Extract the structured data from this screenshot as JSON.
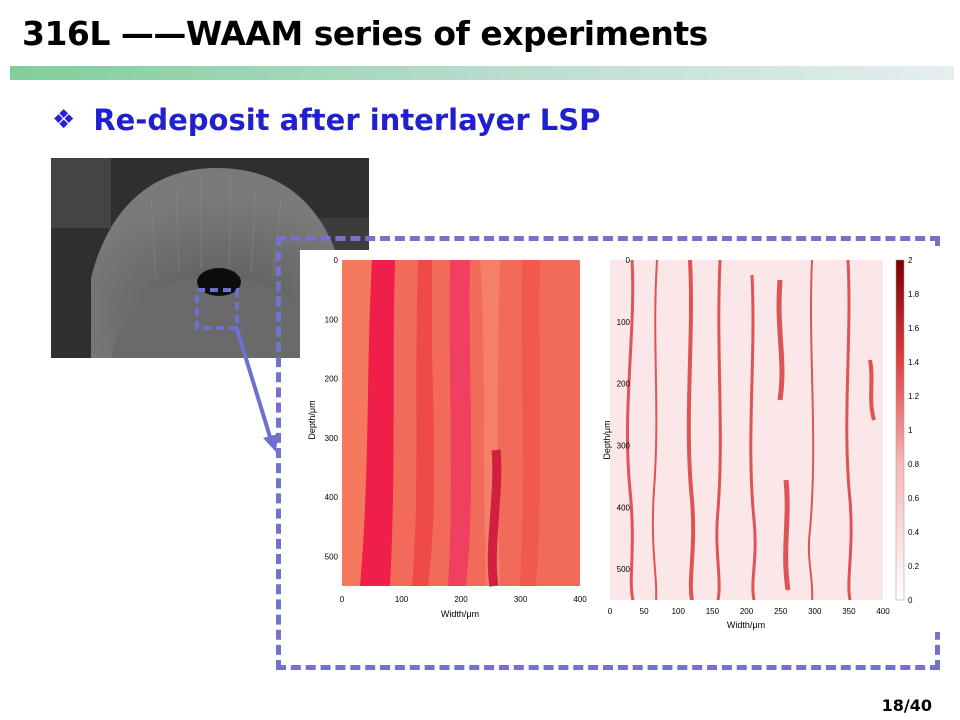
{
  "slide": {
    "title": "316L ——WAAM series of experiments",
    "bullet": "Re-deposit after interlayer LSP",
    "page": "18/40"
  },
  "left_map": {
    "xlabel": "Width/μm",
    "ylabel": "Depth/μm",
    "xticks": [
      "0",
      "100",
      "200",
      "300",
      "400"
    ],
    "yticks": [
      "0",
      "100",
      "200",
      "300",
      "400",
      "500"
    ]
  },
  "right_map": {
    "xlabel": "Width/μm",
    "ylabel": "Depth/μm",
    "xticks": [
      "0",
      "50",
      "100",
      "150",
      "200",
      "250",
      "300",
      "350",
      "400"
    ],
    "yticks": [
      "0",
      "100",
      "200",
      "300",
      "400",
      "500"
    ],
    "colorbar_ticks": [
      "0",
      "0.2",
      "0.4",
      "0.6",
      "0.8",
      "1",
      "1.2",
      "1.4",
      "1.6",
      "1.8",
      "2"
    ]
  },
  "colors": {
    "title_bullet": "#2020d0",
    "dash_border": "#7373cc",
    "arrow": "#6f6fd2"
  }
}
